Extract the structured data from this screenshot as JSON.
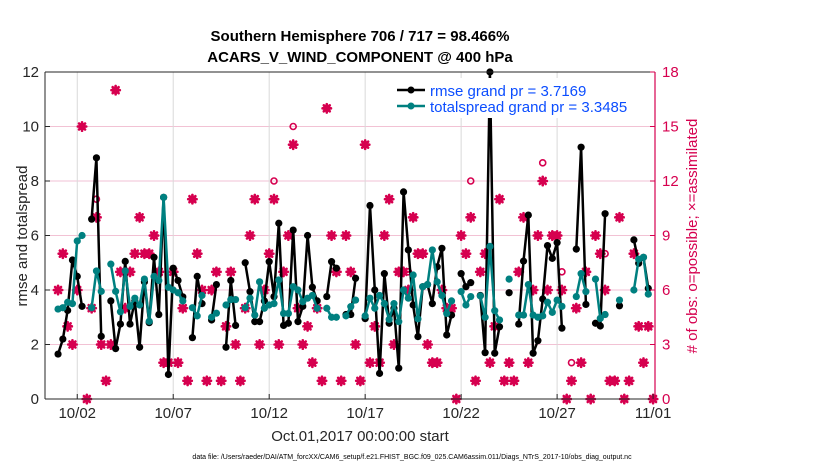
{
  "chart_data": {
    "type": "line",
    "title": [
      "Southern Hemisphere 706 / 717 = 98.466%",
      "ACARS_V_WIND_COMPONENT @ 400 hPa"
    ],
    "xlabel": "Oct.01,2017 00:00:00 start",
    "ylabel": "rmse and totalspread",
    "ylabel_right": "# of obs: o=possible; ×=assimilated",
    "footer": "data file: /Users/raeder/DAI/ATM_forcXX/CAM6_setup/f.e21.FHIST_BGC.f09_025.CAM6assim.011/Diags_NTrS_2017-10/obs_diag_output.nc",
    "x_unit": "day of October 2017 (6-hourly)",
    "x_start": 1,
    "x_step": 0.25,
    "xlim": [
      0.32,
      32.1
    ],
    "ylim": [
      0,
      12
    ],
    "ylim_right": [
      0,
      18
    ],
    "x_ticks": [
      {
        "value": 2,
        "label": "10/02"
      },
      {
        "value": 7,
        "label": "10/07"
      },
      {
        "value": 12,
        "label": "10/12"
      },
      {
        "value": 17,
        "label": "10/17"
      },
      {
        "value": 22,
        "label": "10/22"
      },
      {
        "value": 27,
        "label": "10/27"
      },
      {
        "value": 32,
        "label": "11/01"
      }
    ],
    "y_ticks": [
      "0",
      "2",
      "4",
      "6",
      "8",
      "10",
      "12"
    ],
    "y_ticks_right": [
      "0",
      "3",
      "6",
      "9",
      "12",
      "15",
      "18"
    ],
    "grid": true,
    "legend_position": "top-right",
    "colors": {
      "rmse": "#000000",
      "spread": "#008080",
      "obs": "#d6004f",
      "grid_x": "#d9d9d9",
      "grid_y": "#f2c2d4"
    },
    "series": [
      {
        "name": "rmse grand pr = 3.7169",
        "key": "rmse",
        "values": [
          1.65,
          2.2,
          3.25,
          5.1,
          4.5,
          3.4,
          null,
          6.6,
          8.85,
          2.3,
          null,
          3.6,
          1.85,
          2.75,
          5.05,
          2.75,
          3.6,
          1.9,
          4.3,
          2.8,
          5.2,
          3.1,
          7.4,
          0.9,
          4.8,
          4.35,
          3.75,
          null,
          2.25,
          4.5,
          3.5,
          null,
          2.9,
          4.2,
          null,
          1.9,
          4.35,
          2.7,
          null,
          5.0,
          3.94,
          2.84,
          2.84,
          3.6,
          5.04,
          3.76,
          6.45,
          2.7,
          2.78,
          6.2,
          2.84,
          3.4,
          6.0,
          4.1,
          3.6,
          null,
          3.76,
          5.04,
          4.8,
          null,
          3.1,
          3.1,
          4.43,
          null,
          2.95,
          7.1,
          4.0,
          0.94,
          4.6,
          2.78,
          3.33,
          1.13,
          7.6,
          5.47,
          3.45,
          2.29,
          4.12,
          4.2,
          3.5,
          4.85,
          5.53,
          2.35,
          3.08,
          null,
          4.6,
          4.12,
          4.27,
          null,
          3.8,
          1.7,
          12.0,
          1.68,
          2.65,
          null,
          3.9,
          null,
          2.75,
          5.06,
          6.75,
          1.68,
          2.14,
          3.67,
          5.63,
          5.16,
          5.74,
          2.6,
          null,
          null,
          5.5,
          9.24,
          3.47,
          null,
          2.78,
          2.68,
          6.8,
          null,
          null,
          3.42,
          null,
          null,
          5.84,
          4.98,
          5.2,
          4.06,
          null
        ]
      },
      {
        "name": "totalspread grand pr = 3.3485",
        "key": "spread",
        "values": [
          3.3,
          3.35,
          3.55,
          3.5,
          5.8,
          6.0,
          null,
          3.35,
          4.7,
          3.95,
          null,
          4.95,
          3.95,
          3.2,
          4.7,
          3.4,
          3.7,
          3.45,
          4.4,
          2.85,
          4.5,
          4.35,
          7.4,
          4.1,
          4.0,
          3.9,
          3.6,
          null,
          3.35,
          3.05,
          3.8,
          null,
          3.0,
          3.15,
          null,
          3.45,
          3.65,
          3.65,
          null,
          3.35,
          3.7,
          3.08,
          4.3,
          3.33,
          3.45,
          3.5,
          4.37,
          3.14,
          3.14,
          4.12,
          4.0,
          3.57,
          3.7,
          3.8,
          3.33,
          null,
          3.33,
          3.0,
          3.0,
          null,
          3.05,
          3.39,
          3.63,
          null,
          3.05,
          3.7,
          3.33,
          3.8,
          3.5,
          2.92,
          3.5,
          2.84,
          4.0,
          3.7,
          4.55,
          2.94,
          4.12,
          4.2,
          5.47,
          4.3,
          3.8,
          3.14,
          3.6,
          null,
          3.94,
          3.45,
          3.76,
          null,
          3.78,
          3.0,
          5.6,
          3.24,
          2.9,
          null,
          4.4,
          null,
          3.08,
          3.08,
          4.2,
          3.08,
          3.0,
          3.05,
          3.55,
          3.18,
          3.63,
          3.4,
          null,
          null,
          3.76,
          4.6,
          3.94,
          null,
          4.4,
          2.96,
          3.1,
          null,
          null,
          3.63,
          null,
          null,
          4.0,
          5.13,
          5.2,
          3.85,
          null
        ]
      }
    ],
    "obs_assimilated": [
      6,
      8,
      4,
      3,
      6,
      15,
      0,
      5,
      10,
      3,
      1,
      3,
      17,
      7,
      5,
      7,
      8,
      10,
      8,
      8,
      9,
      7,
      2,
      2,
      7,
      2,
      5,
      1,
      11,
      8,
      6,
      1,
      6,
      7,
      1,
      4,
      7,
      3,
      1,
      5,
      9,
      11,
      3,
      6,
      8,
      11,
      3,
      7,
      9,
      14,
      5,
      3,
      4,
      2,
      5,
      1,
      16,
      9,
      7,
      1,
      9,
      7,
      3,
      1,
      14,
      2,
      4,
      2,
      9,
      11,
      3,
      7,
      7,
      6,
      10,
      8,
      8,
      3,
      2,
      2,
      6,
      5,
      5,
      0,
      9,
      8,
      10,
      1,
      7,
      8,
      2,
      4,
      11,
      1,
      2,
      1,
      7,
      10,
      2,
      6,
      9,
      12,
      6,
      9,
      9,
      6,
      0,
      1,
      5,
      2,
      7,
      0,
      9,
      8,
      6,
      1,
      1,
      10,
      0,
      1,
      8,
      4,
      2,
      4,
      0
    ],
    "obs_possible": [
      6,
      8,
      4,
      3,
      6,
      15,
      0,
      5,
      11,
      3,
      1,
      3,
      17,
      7,
      5,
      7,
      8,
      10,
      8,
      8,
      9,
      7,
      2,
      2,
      7,
      2,
      5,
      1,
      11,
      8,
      6,
      1,
      6,
      7,
      1,
      4,
      7,
      3,
      1,
      5,
      9,
      11,
      3,
      6,
      8,
      12,
      3,
      7,
      9,
      15,
      5,
      3,
      4,
      2,
      5,
      1,
      16,
      9,
      7,
      1,
      9,
      7,
      3,
      1,
      14,
      2,
      4,
      2,
      9,
      11,
      3,
      7,
      7,
      7,
      10,
      8,
      8,
      3,
      2,
      2,
      6,
      5,
      5,
      0,
      9,
      8,
      12,
      1,
      7,
      8,
      2,
      4,
      11,
      1,
      2,
      1,
      7,
      10,
      2,
      6,
      9,
      13,
      6,
      9,
      9,
      7,
      0,
      2,
      5,
      2,
      7,
      0,
      9,
      8,
      8,
      1,
      1,
      10,
      0,
      1,
      8,
      4,
      2,
      4,
      0
    ]
  }
}
